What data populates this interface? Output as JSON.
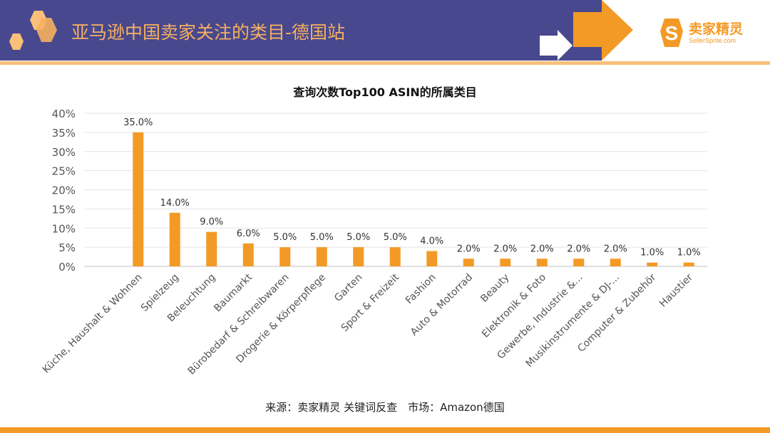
{
  "header": {
    "title": "亚马逊中国卖家关注的类目-德国站"
  },
  "logo": {
    "cn": "卖家精灵",
    "en": "SellerSprite.com"
  },
  "source": "来源：卖家精灵 关键词反查　市场：Amazon德国",
  "colors": {
    "bar": "#f39a26",
    "header": "#48488e",
    "accent": "#f39a26"
  },
  "chart_data": {
    "type": "bar",
    "title": "查询次数Top100 ASIN的所属类目",
    "categories": [
      "Küche, Haushalt & Wohnen",
      "Spielzeug",
      "Beleuchtung",
      "Baumarkt",
      "Bürobedarf & Schreibwaren",
      "Drogerie & Körperpflege",
      "Garten",
      "Sport & Freizeit",
      "Fashion",
      "Auto & Motorrad",
      "Beauty",
      "Elektronik & Foto",
      "Gewerbe, Industrie &...",
      "Musikinstrumente & DJ-...",
      "Computer & Zubehör",
      "Haustier"
    ],
    "values": [
      35,
      14,
      9,
      6,
      5,
      5,
      5,
      5,
      4,
      2,
      2,
      2,
      2,
      2,
      1,
      1
    ],
    "data_labels": [
      "35.0%",
      "14.0%",
      "9.0%",
      "6.0%",
      "5.0%",
      "5.0%",
      "5.0%",
      "5.0%",
      "4.0%",
      "2.0%",
      "2.0%",
      "2.0%",
      "2.0%",
      "2.0%",
      "1.0%",
      "1.0%"
    ],
    "yticks": [
      "0%",
      "5%",
      "10%",
      "15%",
      "20%",
      "25%",
      "30%",
      "35%",
      "40%"
    ],
    "ylim": [
      0,
      40
    ],
    "grid": true,
    "legend": "none"
  }
}
